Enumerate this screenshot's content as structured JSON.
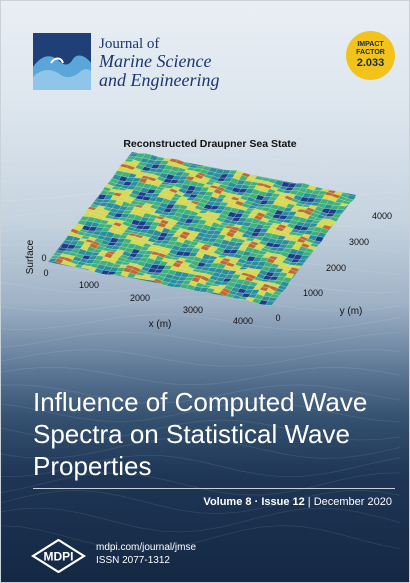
{
  "journal": {
    "line1": "Journal of",
    "line2": "Marine Science",
    "line3": "and Engineering"
  },
  "badge": {
    "line1": "IMPACT",
    "line2": "FACTOR",
    "value": "2.033",
    "color": "#f2c31a"
  },
  "chart_data": {
    "type": "surface",
    "title": "Reconstructed Draupner Sea State",
    "zlabel": "Surface",
    "xlabel": "x (m)",
    "ylabel": "y (m)",
    "x_ticks": [
      "0",
      "1000",
      "2000",
      "3000",
      "4000"
    ],
    "y_ticks": [
      "0",
      "1000",
      "2000",
      "3000",
      "4000"
    ],
    "z_ticks": [
      "0"
    ],
    "xlim": [
      0,
      4000
    ],
    "ylim": [
      0,
      4000
    ],
    "colormap": [
      "#1e3c8c",
      "#2a8f9c",
      "#3fb27a",
      "#d8d94a",
      "#c26a2c"
    ]
  },
  "article": {
    "title_lines": [
      "Influence of Computed Wave",
      "Spectra on Statistical Wave",
      "Properties"
    ]
  },
  "issue": {
    "volume": "Volume 8",
    "dot": "·",
    "issue": "Issue 12",
    "divider": "|",
    "date": "December 2020"
  },
  "publisher": {
    "name": "MDPI",
    "url": "mdpi.com/journal/jmse",
    "issn": "ISSN 2077-1312"
  }
}
